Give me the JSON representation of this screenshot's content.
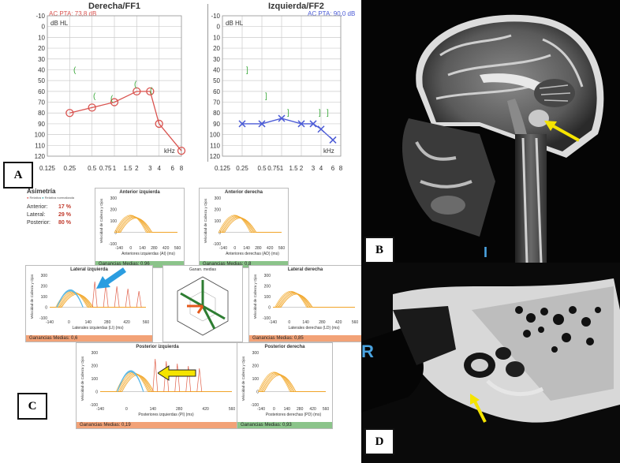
{
  "panels": {
    "a": "A",
    "b": "B",
    "c": "C",
    "d": "D"
  },
  "audiogram": {
    "right": {
      "title": "Derecha/FF1",
      "pta": "AC PTA: 73,8 dB",
      "unit": "dB HL",
      "khz": "kHz"
    },
    "left": {
      "title": "Izquierda/FF2",
      "pta": "AC PTA: 90,0 dB",
      "unit": "dB HL",
      "khz": "kHz"
    },
    "y_ticks": [
      "-10",
      "0",
      "10",
      "20",
      "30",
      "40",
      "50",
      "60",
      "70",
      "80",
      "90",
      "100",
      "110",
      "120"
    ],
    "x_ticks": [
      "0.125",
      "0.25",
      "0.5",
      "0.75",
      "1",
      "1.5",
      "2",
      "3",
      "4",
      "6",
      "8"
    ],
    "colors": {
      "right": "#d9534f",
      "left": "#4b5bd6",
      "bone": "#3aa83a"
    }
  },
  "chart_data": [
    {
      "type": "line",
      "title": "Derecha/FF1",
      "ylabel": "dB HL",
      "xlabel": "kHz",
      "ylim": [
        -10,
        120
      ],
      "y_inverted": true,
      "x": [
        "0.25",
        "0.5",
        "1",
        "2",
        "3",
        "4",
        "8"
      ],
      "series": [
        {
          "values": [
            80,
            75,
            70,
            60,
            60,
            90,
            115
          ]
        }
      ]
    },
    {
      "type": "line",
      "title": "Izquierda/FF2",
      "ylabel": "dB HL",
      "xlabel": "kHz",
      "ylim": [
        -10,
        120
      ],
      "y_inverted": true,
      "x": [
        "0.25",
        "0.5",
        "1",
        "2",
        "3",
        "4",
        "6"
      ],
      "series": [
        {
          "values": [
            90,
            90,
            85,
            90,
            90,
            95,
            105
          ]
        }
      ]
    }
  ],
  "vhit": {
    "asym_title": "Asimetría",
    "legend_relative": "Relativa",
    "legend_normalized": "Relativa normalizada",
    "rows": [
      {
        "label": "Anterior:",
        "value": "17 %"
      },
      {
        "label": "Lateral:",
        "value": "29 %"
      },
      {
        "label": "Posterior:",
        "value": "80 %"
      }
    ],
    "y_label": "Velocidad de Cabeza y Ojos",
    "x_ticks": [
      "-140",
      "0",
      "140",
      "280",
      "420",
      "560"
    ],
    "y_ticks": [
      "300",
      "200",
      "100",
      "0",
      "-100"
    ],
    "radar_title": "Ganan. medias",
    "boxes": [
      {
        "title": "Anterior izquierda",
        "xlabel": "Anteriores izquierdas (AI) (ms)",
        "gain": "Ganancias Medias: 0,96",
        "color": "green"
      },
      {
        "title": "Anterior derecha",
        "xlabel": "Anteriores derechas (AD) (ms)",
        "gain": "Ganancias Medias: 0,8",
        "color": "green"
      },
      {
        "title": "Lateral izquierda",
        "xlabel": "Laterales izquierdas (LI) (ms)",
        "gain": "Ganancias Medias: 0,6",
        "color": "orange"
      },
      {
        "title": "Lateral derecha",
        "xlabel": "Laterales derechas (LD) (ms)",
        "gain": "Ganancias Medias: 0,85",
        "color": "orange"
      },
      {
        "title": "Posterior izquierda",
        "xlabel": "Posteriores izquierdas (PI) (ms)",
        "gain": "Ganancias Medias: 0,19",
        "color": "orange"
      },
      {
        "title": "Posterior derecha",
        "xlabel": "Posteriores derechas (PD) (ms)",
        "gain": "Ganancias Medias: 0,93",
        "color": "green"
      }
    ]
  },
  "mri": {
    "letter": "I"
  },
  "ct": {
    "letter": "R"
  }
}
